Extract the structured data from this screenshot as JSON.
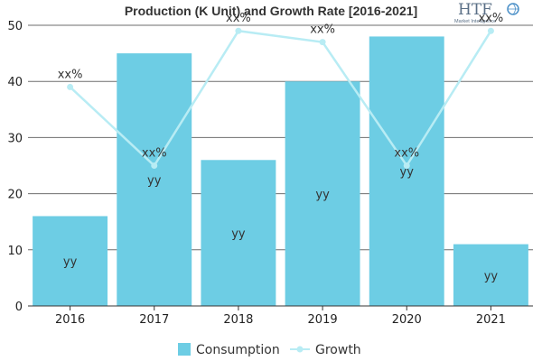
{
  "chart_data": {
    "type": "bar",
    "title": "Production (K Unit) and Growth Rate [2016-2021]",
    "categories": [
      "2016",
      "2017",
      "2018",
      "2019",
      "2020",
      "2021"
    ],
    "ylim": [
      0,
      50
    ],
    "yticks": [
      "0",
      "10",
      "20",
      "30",
      "40",
      "50"
    ],
    "grid": true,
    "legend_position": "bottom",
    "series": [
      {
        "name": "Consumption",
        "type": "bar",
        "color": "#6dcde4",
        "values": [
          16,
          45,
          26,
          40,
          48,
          11
        ],
        "labels": [
          "yy",
          "yy",
          "yy",
          "yy",
          "yy",
          "yy"
        ]
      },
      {
        "name": "Growth",
        "type": "line",
        "color": "#b8ecf4",
        "values": [
          39,
          25,
          49,
          47,
          25,
          49
        ],
        "labels": [
          "xx%",
          "xx%",
          "xx%",
          "xx%",
          "xx%",
          "xx%"
        ]
      }
    ]
  },
  "logo": {
    "text": "HTF",
    "subtext": "Market Intelligence"
  }
}
